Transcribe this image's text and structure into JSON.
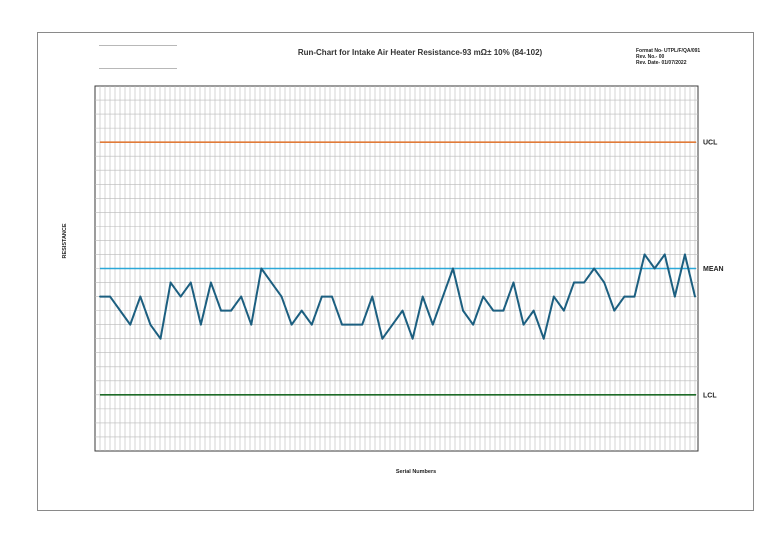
{
  "header": {
    "title": "Run-Chart for Intake Air Heater Resistance-93 mΩ± 10% (84-102)",
    "format_no": "Format No- UTPL/F/QA/091",
    "rev_no": "Rev. No.- 00",
    "rev_date": "Rev. Date- 01/07/2022"
  },
  "chart_data": {
    "type": "line",
    "title": "Run-Chart for Intake Air Heater Resistance-93 mΩ± 10% (84-102)",
    "xlabel": "Serial Numbers",
    "ylabel": "RESISTANCE",
    "ylim": [
      80,
      106
    ],
    "grid": true,
    "reference_lines": [
      {
        "name": "UCL",
        "value": 102,
        "color": "#e07b39"
      },
      {
        "name": "MEAN",
        "value": 93,
        "color": "#2aa8d8"
      },
      {
        "name": "LCL",
        "value": 84,
        "color": "#1e6b28"
      }
    ],
    "series": [
      {
        "color": "#1c5f80",
        "values": [
          91,
          91,
          90,
          89,
          91,
          89,
          88,
          92,
          91,
          92,
          89,
          92,
          90,
          90,
          91,
          89,
          93,
          92,
          91,
          89,
          90,
          89,
          91,
          91,
          89,
          89,
          89,
          91,
          88,
          89,
          90,
          88,
          91,
          89,
          91,
          93,
          90,
          89,
          91,
          90,
          90,
          92,
          89,
          90,
          88,
          91,
          90,
          92,
          92,
          93,
          92,
          90,
          91,
          91,
          94,
          93,
          94,
          91,
          94,
          91
        ]
      }
    ]
  }
}
